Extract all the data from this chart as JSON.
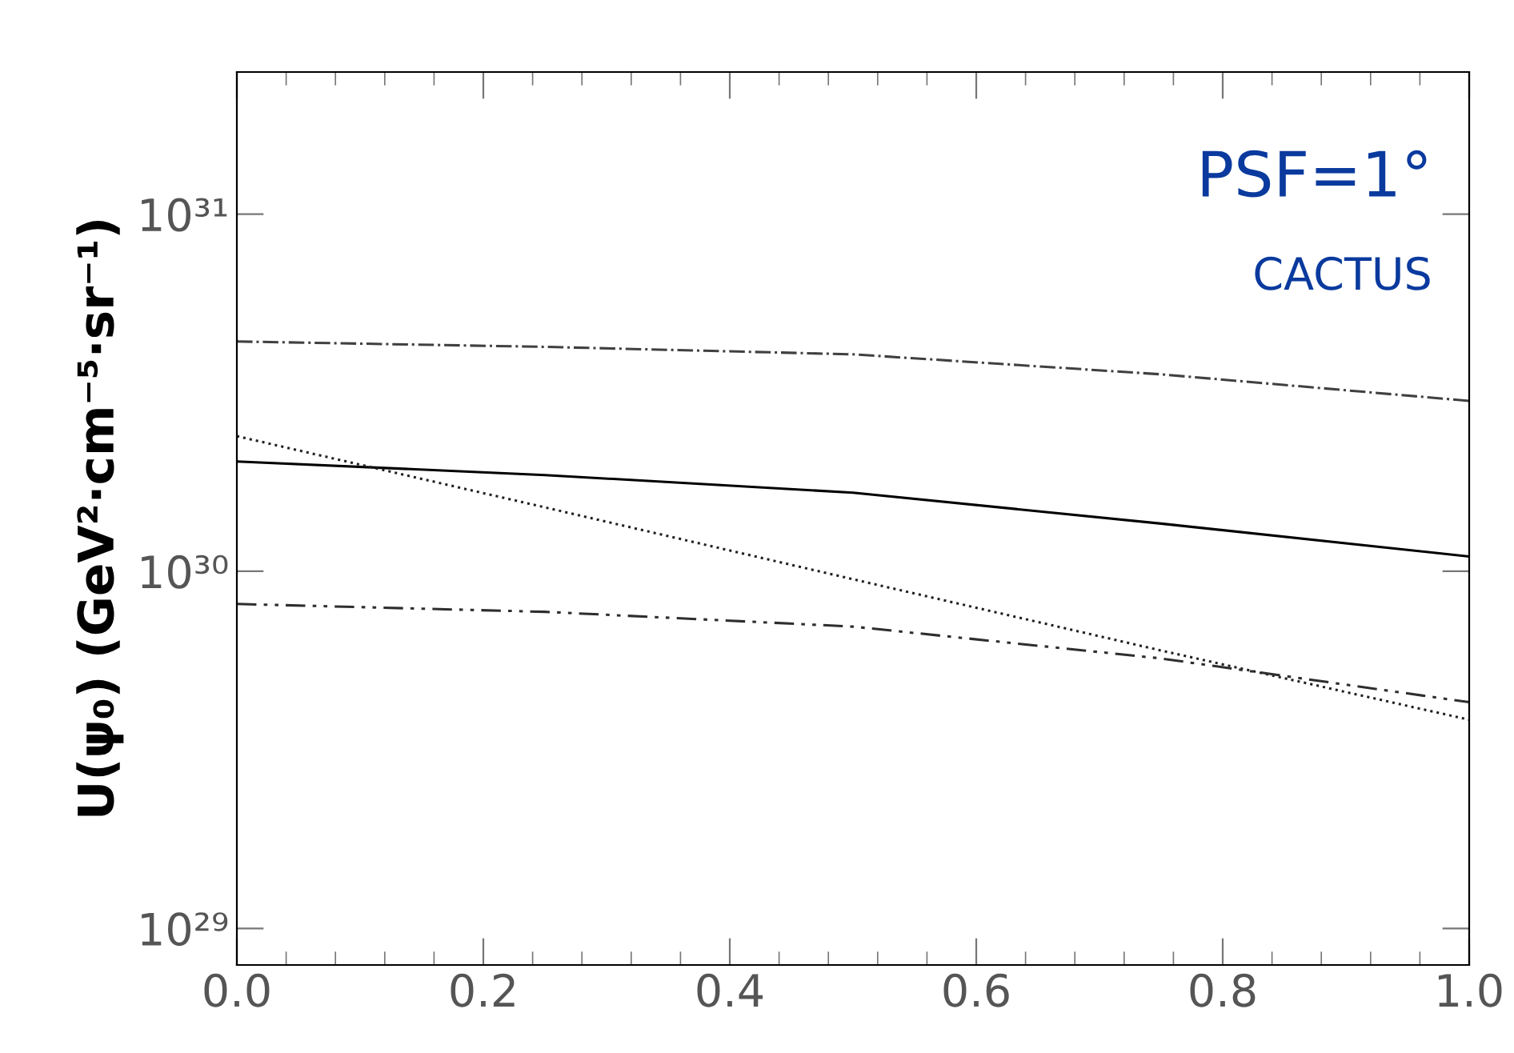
{
  "chart_data": {
    "type": "line",
    "xlabel": null,
    "ylabel": "U(ψ₀) (GeV²·cm⁻⁵·sr⁻¹)",
    "log": "y",
    "x": [
      0,
      0.25,
      0.5,
      0.75,
      1
    ],
    "series": [
      {
        "color": "#404040",
        "line_style": "dashdot",
        "values": [
          4.4e+30,
          4.25e+30,
          4.05e+30,
          3.56e+30,
          3e+30
        ]
      },
      {
        "color": "#000000",
        "line_style": "solid",
        "values": [
          2.03e+30,
          1.86e+30,
          1.66e+30,
          1.36e+30,
          1.1e+30
        ]
      },
      {
        "color": "#202020",
        "line_style": "dotted",
        "values": [
          2.39e+30,
          1.51e+30,
          9.5e+29,
          6e+29,
          3.84e+29
        ]
      },
      {
        "color": "#2e2e2e",
        "line_style": "dashdotdot",
        "values": [
          8.1e+29,
          7.7e+29,
          7e+29,
          5.7e+29,
          4.3e+29
        ]
      }
    ],
    "xlim": [
      0,
      1
    ],
    "ylim": [
      7.9e+28,
      2.5e+31
    ],
    "xticks": [
      {
        "value": 0,
        "label": "0.0"
      },
      {
        "value": 0.2,
        "label": "0.2"
      },
      {
        "value": 0.4,
        "label": "0.4"
      },
      {
        "value": 0.6,
        "label": "0.6"
      },
      {
        "value": 0.8,
        "label": "0.8"
      },
      {
        "value": 1,
        "label": "1.0"
      }
    ],
    "yticks": [
      {
        "value": 1e+29,
        "label": "10²⁹"
      },
      {
        "value": 1e+30,
        "label": "10³⁰"
      },
      {
        "value": 1e+31,
        "label": "10³¹"
      }
    ],
    "annotations": [
      "PSF=1°",
      "CACTUS"
    ],
    "grid": false,
    "marker": "none"
  }
}
